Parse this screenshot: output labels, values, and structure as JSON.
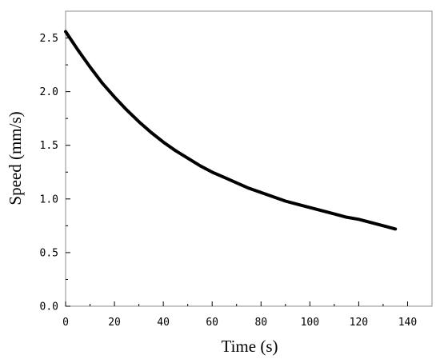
{
  "chart_data": {
    "type": "line",
    "title": "",
    "xlabel": "Time (s)",
    "ylabel": "Speed (mm/s)",
    "xlim": [
      0,
      150
    ],
    "ylim": [
      0.0,
      2.75
    ],
    "x_ticks": [
      0,
      20,
      40,
      60,
      80,
      100,
      120,
      140
    ],
    "x_tick_labels": [
      "0",
      "20",
      "40",
      "60",
      "80",
      "100",
      "120",
      "140"
    ],
    "y_ticks": [
      0.0,
      0.5,
      1.0,
      1.5,
      2.0,
      2.5
    ],
    "y_tick_labels": [
      "0.0",
      "0.5",
      "1.0",
      "1.5",
      "2.0",
      "2.5"
    ],
    "grid": false,
    "legend": "none",
    "series": [
      {
        "color": "#000000",
        "x": [
          0,
          5,
          10,
          15,
          20,
          25,
          30,
          35,
          40,
          45,
          50,
          55,
          60,
          65,
          70,
          75,
          80,
          85,
          90,
          95,
          100,
          105,
          110,
          115,
          120,
          125,
          130,
          135
        ],
        "y": [
          2.56,
          2.39,
          2.23,
          2.08,
          1.95,
          1.83,
          1.72,
          1.62,
          1.53,
          1.45,
          1.38,
          1.31,
          1.25,
          1.2,
          1.15,
          1.1,
          1.06,
          1.02,
          0.98,
          0.95,
          0.92,
          0.89,
          0.86,
          0.83,
          0.81,
          0.78,
          0.75,
          0.72
        ]
      }
    ]
  }
}
